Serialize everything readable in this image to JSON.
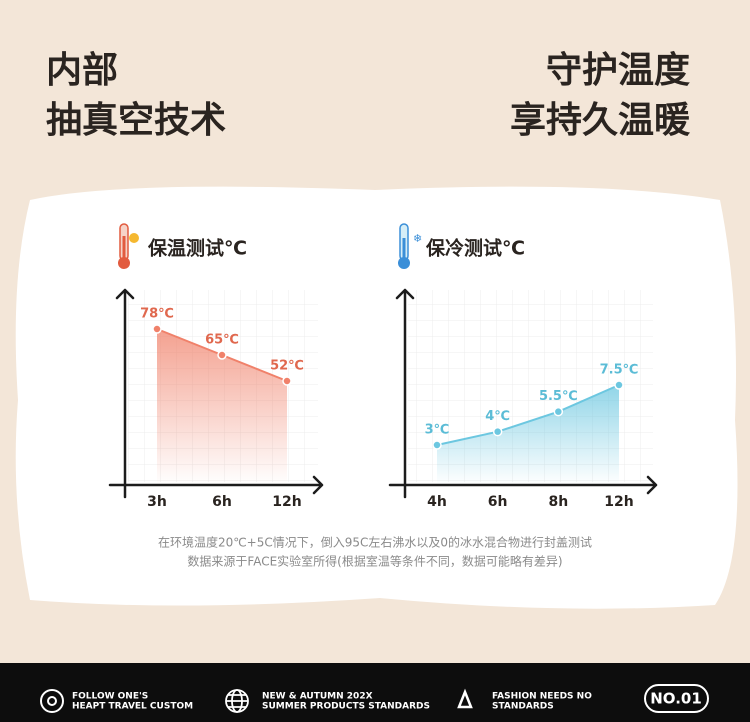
{
  "headline": {
    "left": [
      "内部",
      "抽真空技术"
    ],
    "right": [
      "守护温度",
      "享持久温暖"
    ]
  },
  "chart_data": [
    {
      "type": "area",
      "title": "保温测试℃",
      "categories": [
        "3h",
        "6h",
        "12h"
      ],
      "values": [
        78,
        65,
        52
      ],
      "value_labels": [
        "78℃",
        "65℃",
        "52℃"
      ],
      "color": "#f0816a",
      "label_color": "#e0684e",
      "ylim": [
        0,
        100
      ]
    },
    {
      "type": "area",
      "title": "保冷测试℃",
      "categories": [
        "4h",
        "6h",
        "8h",
        "12h"
      ],
      "values": [
        3,
        4,
        5.5,
        7.5
      ],
      "value_labels": [
        "3℃",
        "4℃",
        "5.5℃",
        "7.5℃"
      ],
      "color": "#6cc7e0",
      "label_color": "#5bbcd6",
      "ylim": [
        0,
        15
      ]
    }
  ],
  "note": [
    "在环境温度20℃+5C情况下，倒入95C左右沸水以及0的冰水混合物进行封盖测试",
    "数据来源于FACE实验室所得(根据室温等条件不同，数据可能略有差异)"
  ],
  "footer": {
    "items": [
      [
        "FOLLOW ONE'S",
        "HEAPT TRAVEL CUSTOM"
      ],
      [
        "NEW & AUTUMN 202X",
        "SUMMER PRODUCTS STANDARDS"
      ],
      [
        "FASHION NEEDS NO",
        "STANDARDS"
      ]
    ],
    "badge": "NO.01"
  }
}
